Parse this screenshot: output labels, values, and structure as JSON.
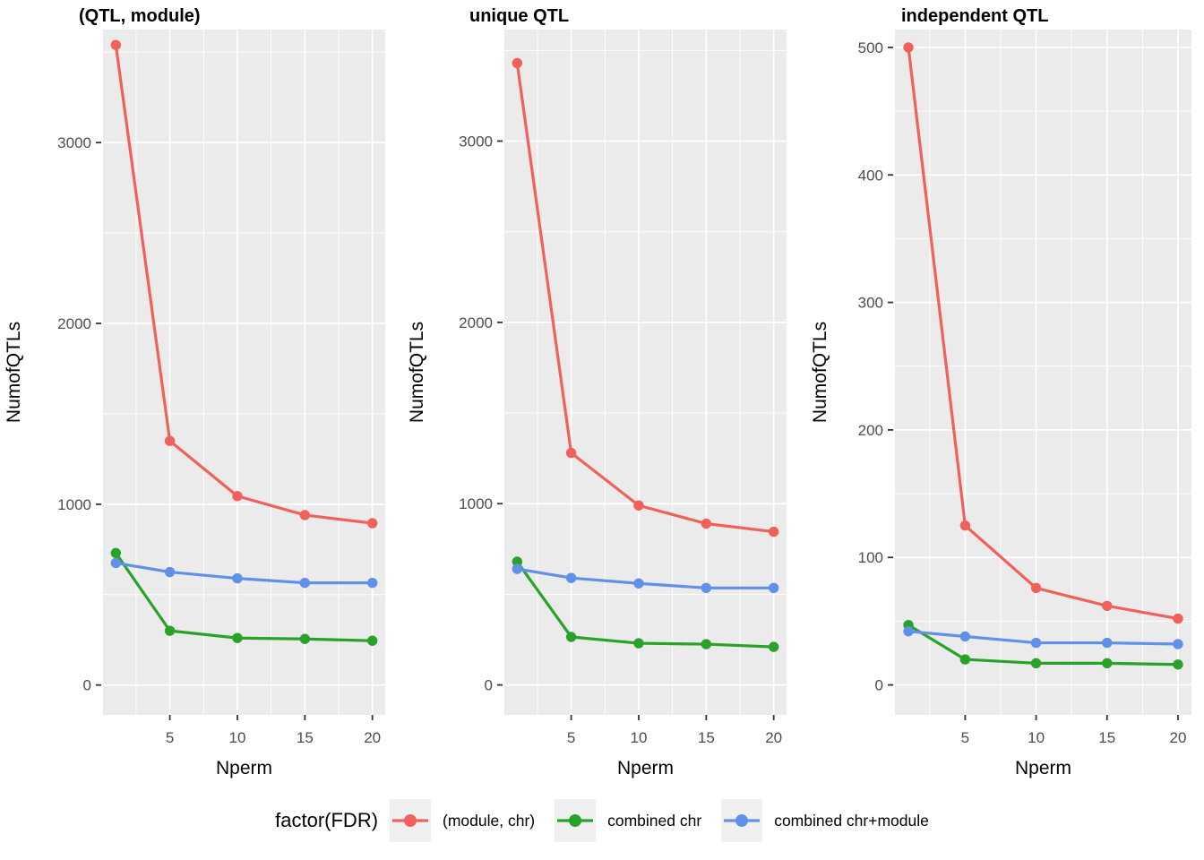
{
  "figure": {
    "background": "#FFFFFF",
    "panel_bg": "#EBEBEB",
    "grid_color": "#FFFFFF",
    "tick_color": "#333333",
    "tick_label_color": "#4D4D4D",
    "text_color": "#000000"
  },
  "legend": {
    "title": "factor(FDR)",
    "key_bg": "#F0F0F0",
    "items": [
      {
        "label": "(module, chr)",
        "color": "#F0615C"
      },
      {
        "label": "combined chr",
        "color": "#2AA22A"
      },
      {
        "label": "combined chr+module",
        "color": "#6190E8"
      }
    ]
  },
  "chart_data": [
    {
      "type": "line",
      "title": "(QTL, module)",
      "xlabel": "Nperm",
      "ylabel": "NumofQTLs",
      "x": [
        1,
        5,
        10,
        15,
        20
      ],
      "xticks": [
        5,
        10,
        15,
        20
      ],
      "xlim": [
        0.05,
        20.95
      ],
      "yticks": [
        0,
        1000,
        2000,
        3000
      ],
      "ylim": [
        -165,
        3625
      ],
      "grid": true,
      "legend_position": "bottom",
      "series": [
        {
          "name": "(module, chr)",
          "color": "#F0615C",
          "values": [
            3540,
            1350,
            1045,
            940,
            895
          ]
        },
        {
          "name": "combined chr",
          "color": "#2AA22A",
          "values": [
            730,
            300,
            260,
            255,
            245
          ]
        },
        {
          "name": "combined chr+module",
          "color": "#6190E8",
          "values": [
            675,
            625,
            590,
            565,
            565
          ]
        }
      ]
    },
    {
      "type": "line",
      "title": "unique QTL",
      "xlabel": "Nperm",
      "ylabel": "NumofQTLs",
      "x": [
        1,
        5,
        10,
        15,
        20
      ],
      "xticks": [
        5,
        10,
        15,
        20
      ],
      "xlim": [
        0.05,
        20.95
      ],
      "yticks": [
        0,
        1000,
        2000,
        3000
      ],
      "ylim": [
        -165,
        3615
      ],
      "grid": true,
      "legend_position": "bottom",
      "series": [
        {
          "name": "(module, chr)",
          "color": "#F0615C",
          "values": [
            3430,
            1280,
            990,
            890,
            845
          ]
        },
        {
          "name": "combined chr",
          "color": "#2AA22A",
          "values": [
            680,
            265,
            230,
            225,
            210
          ]
        },
        {
          "name": "combined chr+module",
          "color": "#6190E8",
          "values": [
            640,
            590,
            560,
            535,
            535
          ]
        }
      ]
    },
    {
      "type": "line",
      "title": "independent QTL",
      "xlabel": "Nperm",
      "ylabel": "NumofQTLs",
      "x": [
        1,
        5,
        10,
        15,
        20
      ],
      "xticks": [
        5,
        10,
        15,
        20
      ],
      "xlim": [
        0.05,
        20.95
      ],
      "yticks": [
        0,
        100,
        200,
        300,
        400,
        500
      ],
      "ylim": [
        -23.5,
        514
      ],
      "grid": true,
      "legend_position": "bottom",
      "series": [
        {
          "name": "(module, chr)",
          "color": "#F0615C",
          "values": [
            500,
            125,
            76,
            62,
            52
          ]
        },
        {
          "name": "combined chr",
          "color": "#2AA22A",
          "values": [
            47,
            20,
            17,
            17,
            16
          ]
        },
        {
          "name": "combined chr+module",
          "color": "#6190E8",
          "values": [
            42,
            38,
            33,
            33,
            32
          ]
        }
      ]
    }
  ]
}
